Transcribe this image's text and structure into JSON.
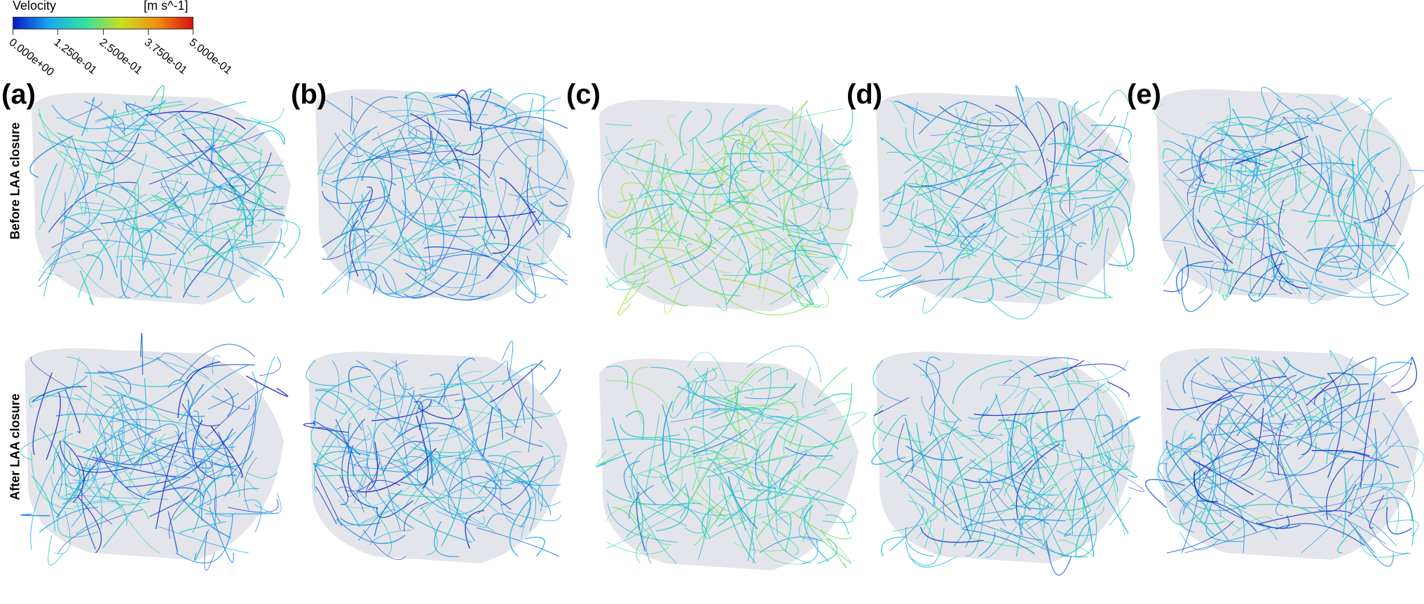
{
  "legend": {
    "title": "Velocity",
    "units": "[m s^-1]",
    "ticks": [
      "0.000e+00",
      "1.250e-01",
      "2.500e-01",
      "3.750e-01",
      "5.000e-01"
    ],
    "colors": [
      "#0a18c8",
      "#18a8f0",
      "#35e0a0",
      "#c8e020",
      "#f09010",
      "#d81010"
    ]
  },
  "panels": [
    "(a)",
    "(b)",
    "(c)",
    "(d)",
    "(e)"
  ],
  "rows": [
    "Before LAA closure",
    "After LAA closure"
  ]
}
